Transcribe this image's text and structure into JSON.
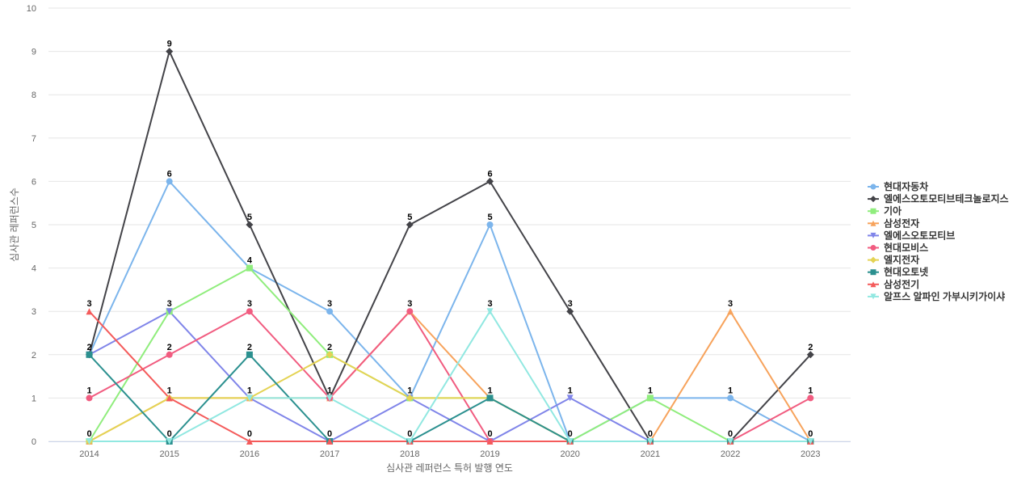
{
  "chart_data": {
    "type": "line",
    "title": "",
    "xlabel": "심사관 레퍼런스 특허 발행 연도",
    "ylabel": "심사관 레퍼런스수",
    "ylim": [
      0,
      10
    ],
    "yticks": [
      "0",
      "1",
      "2",
      "3",
      "4",
      "5",
      "6",
      "7",
      "8",
      "9",
      "10"
    ],
    "categories": [
      "2014",
      "2015",
      "2016",
      "2017",
      "2018",
      "2019",
      "2020",
      "2021",
      "2022",
      "2023"
    ],
    "grid": "horizontal",
    "legend_position": "right",
    "series": [
      {
        "name": "현대자동차",
        "color": "#7cb5ec",
        "marker": "circle",
        "values": [
          2,
          6,
          4,
          3,
          1,
          5,
          0,
          1,
          1,
          0
        ]
      },
      {
        "name": "엘에스오토모티브테크놀로지스",
        "color": "#434348",
        "marker": "diamond",
        "values": [
          2,
          9,
          5,
          1,
          5,
          6,
          3,
          0,
          0,
          2
        ]
      },
      {
        "name": "기아",
        "color": "#90ed7d",
        "marker": "square",
        "values": [
          0,
          3,
          4,
          2,
          1,
          1,
          0,
          1,
          0,
          0
        ]
      },
      {
        "name": "삼성전자",
        "color": "#f7a35c",
        "marker": "triangle",
        "values": [
          0,
          1,
          1,
          1,
          3,
          1,
          0,
          0,
          3,
          0
        ]
      },
      {
        "name": "엘에스오토모티브",
        "color": "#8085e9",
        "marker": "triangle-down",
        "values": [
          2,
          3,
          1,
          0,
          1,
          0,
          1,
          0,
          0,
          0
        ]
      },
      {
        "name": "현대모비스",
        "color": "#f15c80",
        "marker": "circle",
        "values": [
          1,
          2,
          3,
          1,
          3,
          0,
          0,
          0,
          0,
          1
        ]
      },
      {
        "name": "엘지전자",
        "color": "#e4d354",
        "marker": "diamond",
        "values": [
          0,
          1,
          1,
          2,
          1,
          1,
          0,
          0,
          0,
          0
        ]
      },
      {
        "name": "현대오토넷",
        "color": "#2b908f",
        "marker": "square",
        "values": [
          2,
          0,
          2,
          0,
          0,
          1,
          0,
          0,
          0,
          0
        ]
      },
      {
        "name": "삼성전기",
        "color": "#f45b5b",
        "marker": "triangle",
        "values": [
          3,
          1,
          0,
          0,
          0,
          0,
          0,
          0,
          0,
          0
        ]
      },
      {
        "name": "알프스 알파인 가부시키가이샤",
        "color": "#91e8e1",
        "marker": "triangle-down",
        "values": [
          0,
          0,
          1,
          1,
          0,
          3,
          0,
          0,
          0,
          0
        ]
      }
    ],
    "data_labels": [
      {
        "category": "2014",
        "series": "삼성전기",
        "text": "3"
      },
      {
        "category": "2014",
        "series": "현대오토넷",
        "text": "2"
      },
      {
        "category": "2014",
        "series": "현대모비스",
        "text": "1"
      },
      {
        "category": "2014",
        "series": "기아",
        "text": "0"
      },
      {
        "category": "2015",
        "series": "엘에스오토모티브테크놀로지스",
        "text": "9"
      },
      {
        "category": "2015",
        "series": "현대자동차",
        "text": "6"
      },
      {
        "category": "2015",
        "series": "엘에스오토모티브",
        "text": "3"
      },
      {
        "category": "2015",
        "series": "현대모비스",
        "text": "2"
      },
      {
        "category": "2015",
        "series": "삼성전기",
        "text": "1"
      },
      {
        "category": "2015",
        "series": "현대오토넷",
        "text": "0"
      },
      {
        "category": "2016",
        "series": "엘에스오토모티브테크놀로지스",
        "text": "5"
      },
      {
        "category": "2016",
        "series": "기아",
        "text": "4"
      },
      {
        "category": "2016",
        "series": "현대모비스",
        "text": "3"
      },
      {
        "category": "2016",
        "series": "현대오토넷",
        "text": "2"
      },
      {
        "category": "2016",
        "series": "엘에스오토모티브",
        "text": "1"
      },
      {
        "category": "2016",
        "series": "삼성전기",
        "text": "0"
      },
      {
        "category": "2017",
        "series": "현대자동차",
        "text": "3"
      },
      {
        "category": "2017",
        "series": "엘지전자",
        "text": "2"
      },
      {
        "category": "2017",
        "series": "엘에스오토모티브테크놀로지스",
        "text": "1"
      },
      {
        "category": "2017",
        "series": "현대오토넷",
        "text": "0"
      },
      {
        "category": "2018",
        "series": "엘에스오토모티브테크놀로지스",
        "text": "5"
      },
      {
        "category": "2018",
        "series": "현대모비스",
        "text": "3"
      },
      {
        "category": "2018",
        "series": "현대자동차",
        "text": "1"
      },
      {
        "category": "2018",
        "series": "현대오토넷",
        "text": "0"
      },
      {
        "category": "2019",
        "series": "엘에스오토모티브테크놀로지스",
        "text": "6"
      },
      {
        "category": "2019",
        "series": "현대자동차",
        "text": "5"
      },
      {
        "category": "2019",
        "series": "알프스 알파인 가부시키가이샤",
        "text": "3"
      },
      {
        "category": "2019",
        "series": "현대오토넷",
        "text": "1"
      },
      {
        "category": "2019",
        "series": "현대모비스",
        "text": "0"
      },
      {
        "category": "2020",
        "series": "엘에스오토모티브테크놀로지스",
        "text": "3"
      },
      {
        "category": "2020",
        "series": "엘에스오토모티브",
        "text": "1"
      },
      {
        "category": "2020",
        "series": "현대자동차",
        "text": "0"
      },
      {
        "category": "2021",
        "series": "기아",
        "text": "1"
      },
      {
        "category": "2021",
        "series": "엘에스오토모티브테크놀로지스",
        "text": "0"
      },
      {
        "category": "2022",
        "series": "삼성전자",
        "text": "3"
      },
      {
        "category": "2022",
        "series": "현대자동차",
        "text": "1"
      },
      {
        "category": "2022",
        "series": "엘에스오토모티브테크놀로지스",
        "text": "0"
      },
      {
        "category": "2023",
        "series": "엘에스오토모티브테크놀로지스",
        "text": "2"
      },
      {
        "category": "2023",
        "series": "현대모비스",
        "text": "1"
      },
      {
        "category": "2023",
        "series": "현대자동차",
        "text": "0"
      }
    ]
  }
}
